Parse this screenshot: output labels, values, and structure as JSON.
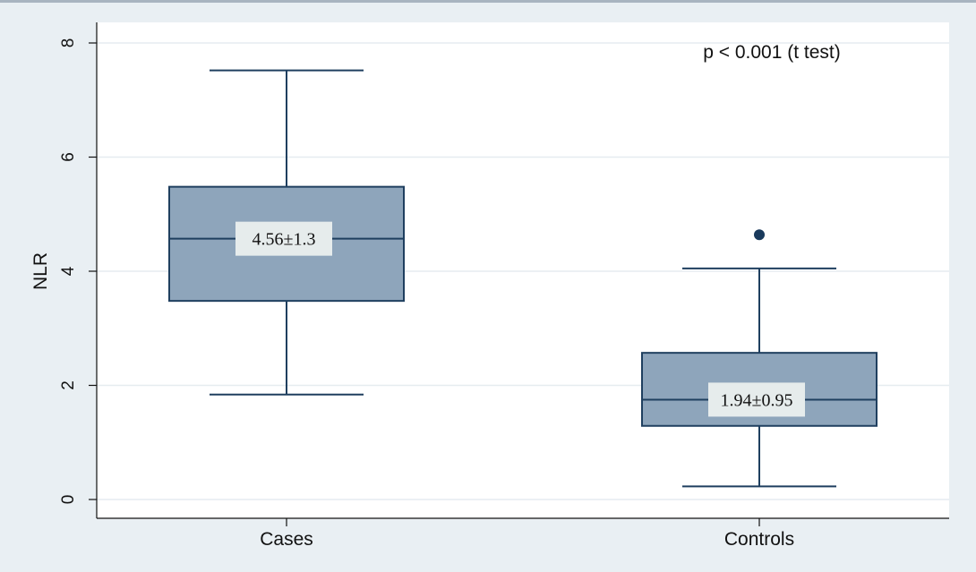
{
  "chart_data": {
    "type": "box",
    "ylabel": "NLR",
    "ylim": [
      0,
      8
    ],
    "yticks": [
      "0",
      "2",
      "4",
      "6",
      "8"
    ],
    "categories": [
      "Cases",
      "Controls"
    ],
    "boxes": [
      {
        "category": "Cases",
        "whisker_low": 1.84,
        "q1": 3.48,
        "median": 4.57,
        "q3": 5.48,
        "whisker_high": 7.52,
        "outliers": [],
        "label": "4.56±1.3"
      },
      {
        "category": "Controls",
        "whisker_low": 0.23,
        "q1": 1.29,
        "median": 1.75,
        "q3": 2.57,
        "whisker_high": 4.05,
        "outliers": [
          4.64
        ],
        "label": "1.94±0.95"
      }
    ],
    "annotation": "p < 0.001 (t test)",
    "grid": true,
    "colors": {
      "box_fill": "#8ea5bb",
      "box_stroke": "#1f3f5f",
      "outlier": "#1a3a5c",
      "plot_bg": "#ffffff",
      "page_bg": "#e9eff3",
      "grid": "#e6ecf0",
      "label_bg": "#e6ecec"
    }
  }
}
